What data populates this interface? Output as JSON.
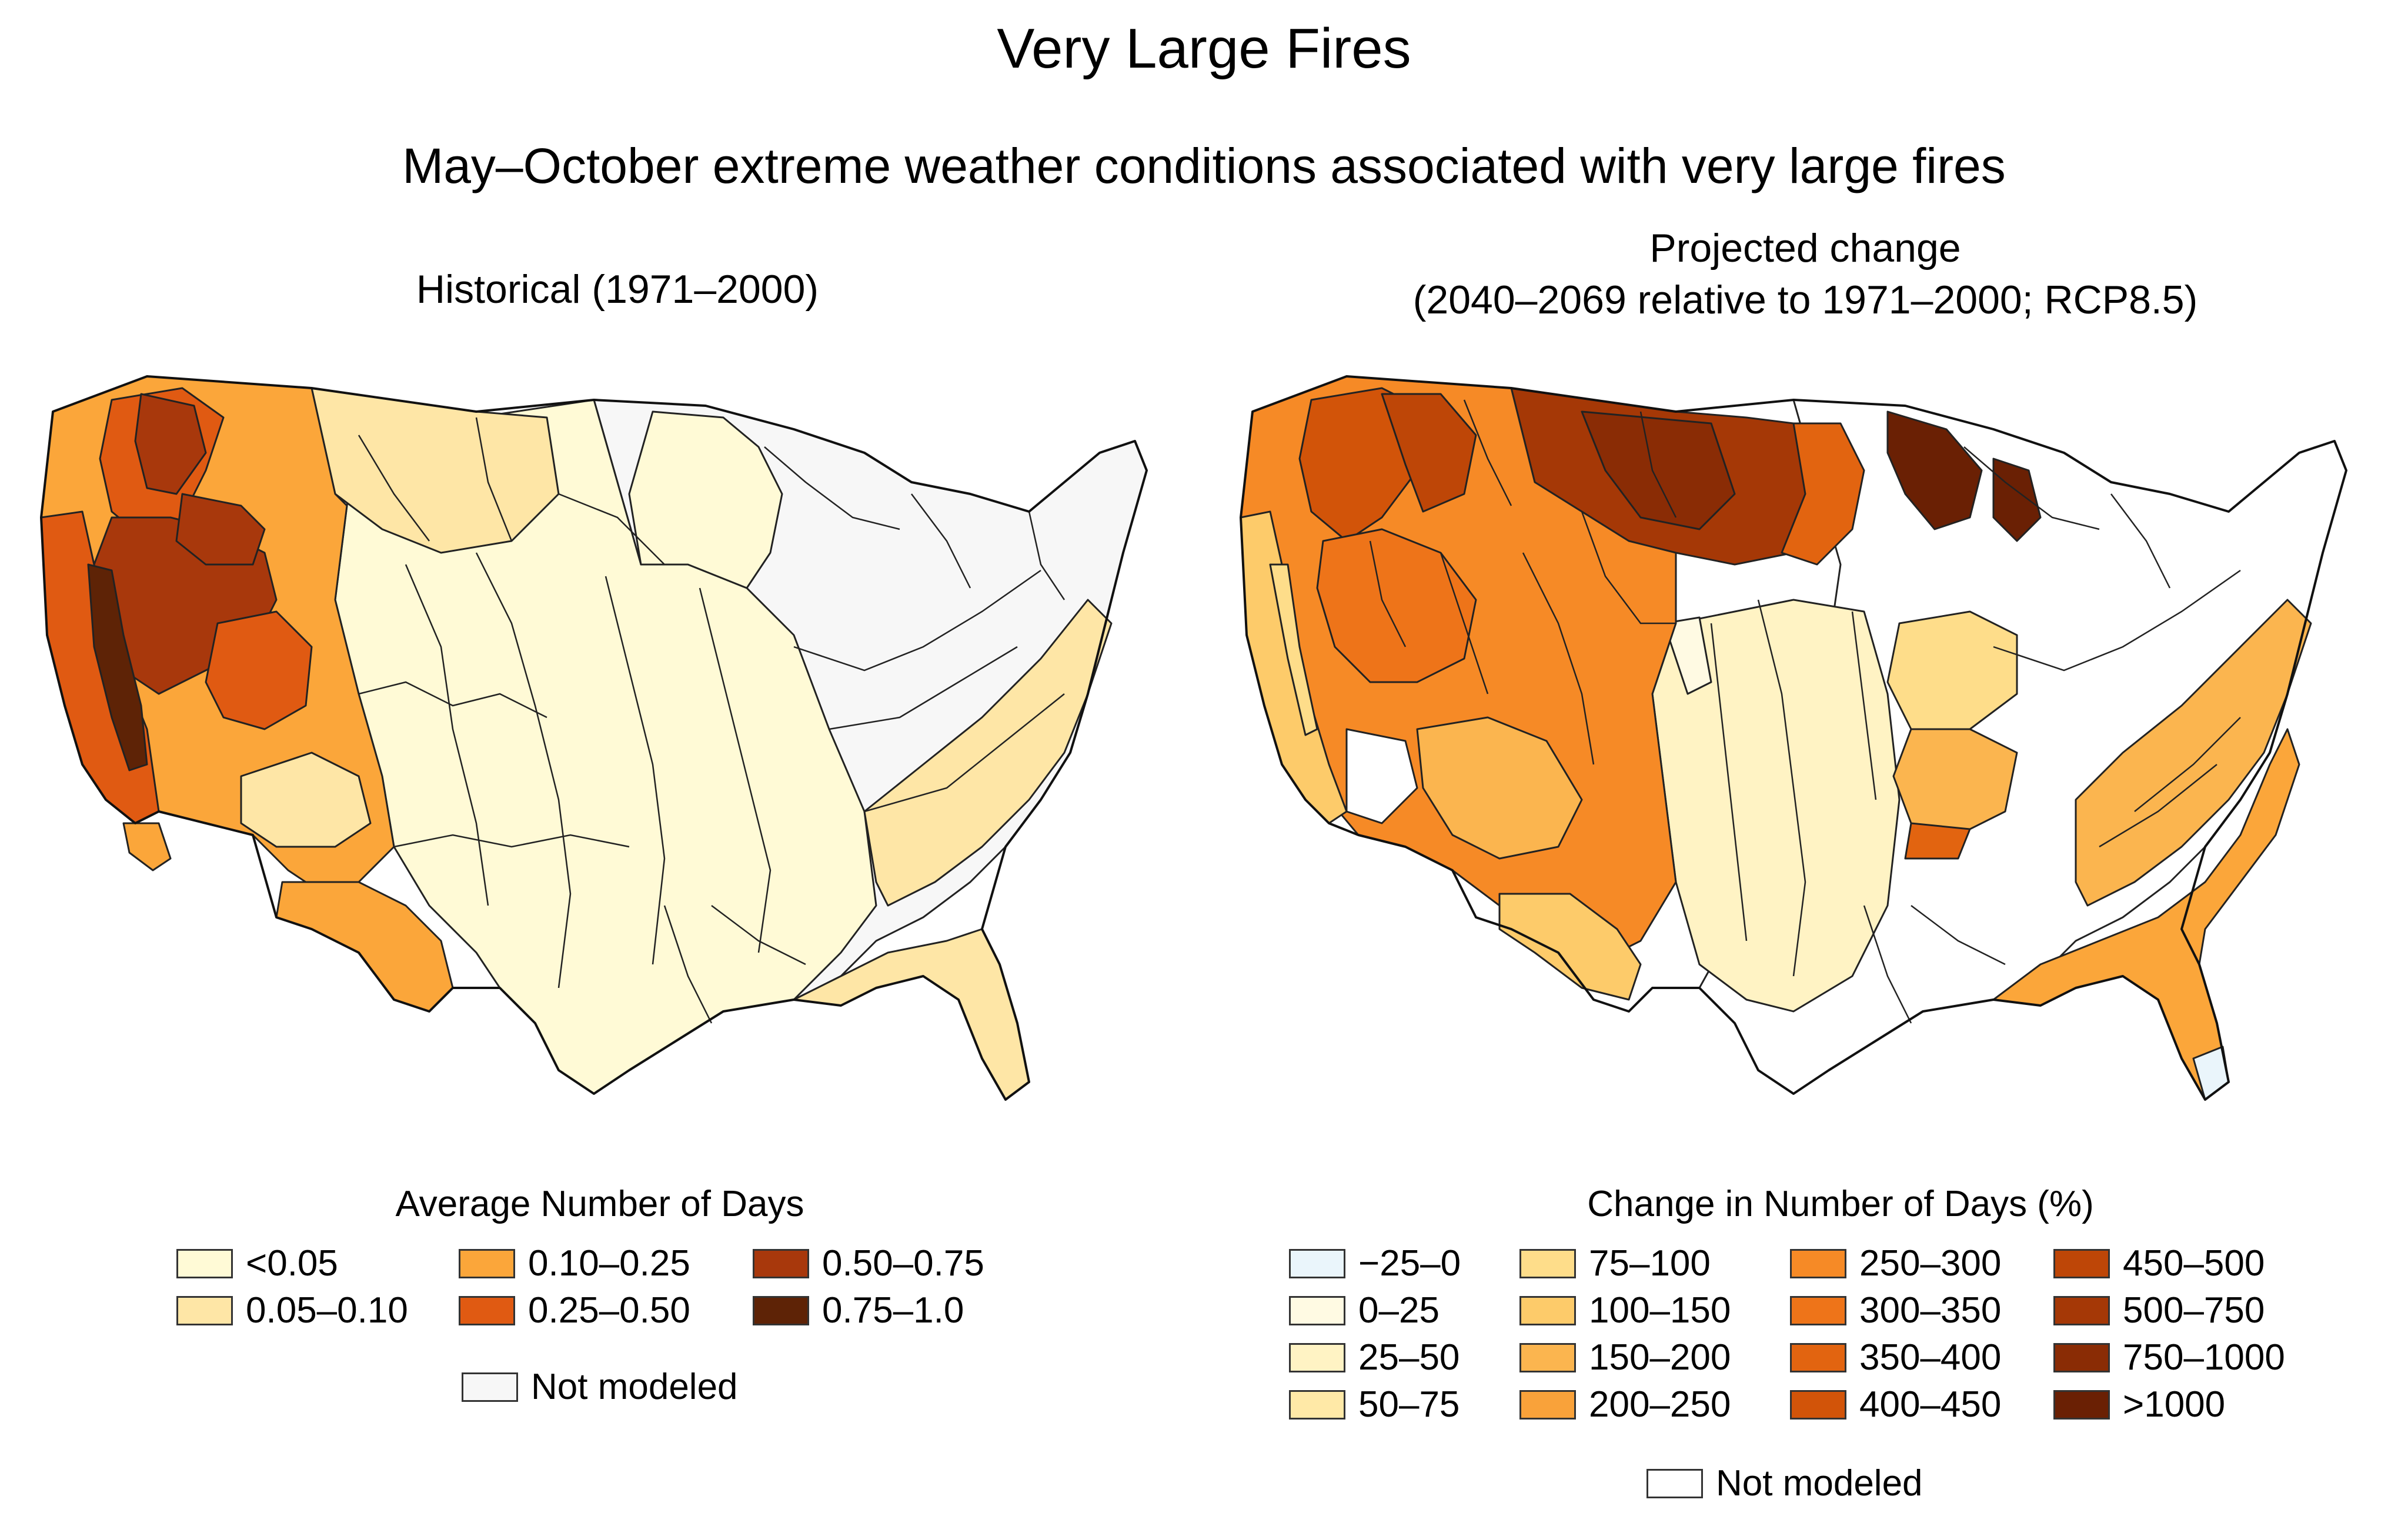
{
  "title": "Very Large Fires",
  "subtitle": "May–October extreme weather conditions associated with very large fires",
  "left_panel": {
    "title": "Historical (1971–2000)",
    "legend_title": "Average Number of Days",
    "legend": [
      {
        "label": "<0.05",
        "color": "#fffad6"
      },
      {
        "label": "0.05–0.10",
        "color": "#fee6a6"
      },
      {
        "label": "0.10–0.25",
        "color": "#fba63a"
      },
      {
        "label": "0.25–0.50",
        "color": "#e05a12"
      },
      {
        "label": "0.50–0.75",
        "color": "#a8380c"
      },
      {
        "label": "0.75–1.0",
        "color": "#5e2306"
      }
    ],
    "not_modeled": {
      "label": "Not modeled",
      "color": "#f7f7f7"
    }
  },
  "right_panel": {
    "title_line1": "Projected change",
    "title_line2": "(2040–2069 relative to 1971–2000; RCP8.5)",
    "legend_title": "Change in Number of Days (%)",
    "legend": [
      {
        "label": "−25–0",
        "color": "#eaf5fb"
      },
      {
        "label": "0–25",
        "color": "#fffae3"
      },
      {
        "label": "25–50",
        "color": "#fff3c4"
      },
      {
        "label": "50–75",
        "color": "#ffe9a7"
      },
      {
        "label": "75–100",
        "color": "#fedd8a"
      },
      {
        "label": "100–150",
        "color": "#fdcb6a"
      },
      {
        "label": "150–200",
        "color": "#fbb54f"
      },
      {
        "label": "200–250",
        "color": "#f9a23a"
      },
      {
        "label": "250–300",
        "color": "#f68a26"
      },
      {
        "label": "300–350",
        "color": "#ee7419"
      },
      {
        "label": "350–400",
        "color": "#e26410"
      },
      {
        "label": "400–450",
        "color": "#d25409"
      },
      {
        "label": "450–500",
        "color": "#be4607"
      },
      {
        "label": "500–750",
        "color": "#a53806"
      },
      {
        "label": "750–1000",
        "color": "#8a2c05"
      },
      {
        "label": ">1000",
        "color": "#6a2004"
      }
    ],
    "not_modeled": {
      "label": "Not modeled",
      "color": "#ffffff"
    }
  }
}
